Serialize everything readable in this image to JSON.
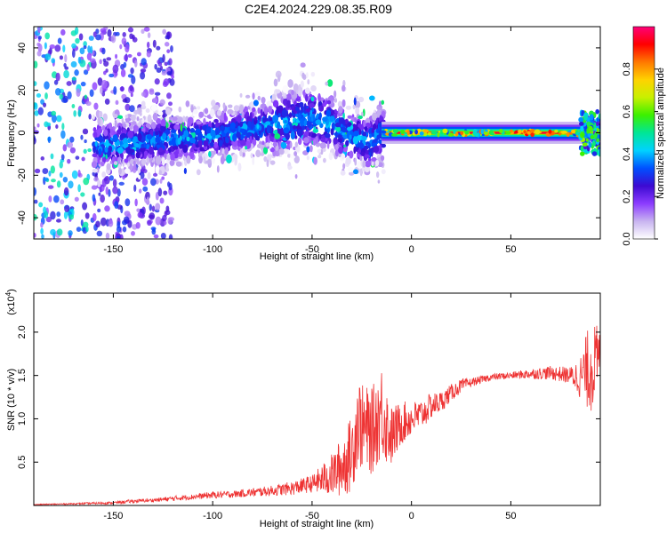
{
  "title": "C2E4.2024.229.08.35.R09",
  "chart_data": [
    {
      "type": "heatmap",
      "xlabel": "Height of straight line (km)",
      "ylabel": "Frequency (Hz)",
      "xlim": [
        -190,
        95
      ],
      "ylim": [
        -50,
        50
      ],
      "xticks": [
        -150,
        -100,
        -50,
        0,
        50
      ],
      "yticks": [
        -40,
        -20,
        0,
        20,
        40
      ],
      "colorbar": {
        "label": "Normalized spectral amplitude",
        "range": [
          0,
          1
        ],
        "ticks": [
          "0.0",
          "0.2",
          "0.4",
          "0.6",
          "0.8"
        ],
        "colors": [
          "#ffffff",
          "#c8b4f0",
          "#8c3cff",
          "#3c0ad2",
          "#0050ff",
          "#00d2ff",
          "#00e696",
          "#3cf000",
          "#c8f000",
          "#ffd200",
          "#ff7800",
          "#ff0000",
          "#ff0078"
        ]
      },
      "ridge": [
        {
          "x": -155,
          "f": -6
        },
        {
          "x": -140,
          "f": -5
        },
        {
          "x": -120,
          "f": -3
        },
        {
          "x": -100,
          "f": -1
        },
        {
          "x": -80,
          "f": 2
        },
        {
          "x": -65,
          "f": 5
        },
        {
          "x": -50,
          "f": 7
        },
        {
          "x": -40,
          "f": 4
        },
        {
          "x": -30,
          "f": -2
        },
        {
          "x": -20,
          "f": -4
        },
        {
          "x": -15,
          "f": 0
        },
        {
          "x": 0,
          "f": 0
        },
        {
          "x": 50,
          "f": 0
        },
        {
          "x": 90,
          "f": 1
        },
        {
          "x": 95,
          "f": 0
        }
      ]
    },
    {
      "type": "line",
      "xlabel": "Height of straight line (km)",
      "ylabel": "SNR (10 * v/v)",
      "multiplier_prefix": "(x10",
      "multiplier_exp": "4",
      "multiplier_suffix": ")",
      "xlim": [
        -190,
        95
      ],
      "ylim": [
        0,
        2.45
      ],
      "xticks": [
        -150,
        -100,
        -50,
        0,
        50
      ],
      "yticks": [
        "0.5",
        "1.0",
        "1.5",
        "2.0"
      ],
      "series": [
        {
          "color": "#ee3333",
          "x": [
            -190,
            -170,
            -150,
            -140,
            -130,
            -120,
            -110,
            -100,
            -90,
            -80,
            -70,
            -60,
            -50,
            -40,
            -35,
            -30,
            -27,
            -25,
            -20,
            -15,
            -12,
            -10,
            -5,
            0,
            5,
            10,
            15,
            20,
            25,
            30,
            40,
            50,
            60,
            70,
            80,
            85,
            90,
            95
          ],
          "values": [
            0.01,
            0.02,
            0.03,
            0.05,
            0.06,
            0.08,
            0.1,
            0.12,
            0.13,
            0.15,
            0.17,
            0.2,
            0.25,
            0.35,
            0.45,
            0.6,
            1.0,
            0.9,
            0.85,
            1.1,
            0.9,
            0.8,
            0.95,
            1.0,
            1.05,
            1.15,
            1.2,
            1.3,
            1.38,
            1.42,
            1.48,
            1.5,
            1.52,
            1.53,
            1.5,
            1.48,
            1.6,
            1.7
          ],
          "noise": [
            0.005,
            0.008,
            0.015,
            0.02,
            0.02,
            0.03,
            0.03,
            0.04,
            0.04,
            0.05,
            0.06,
            0.08,
            0.1,
            0.25,
            0.35,
            0.45,
            0.55,
            0.5,
            0.5,
            0.55,
            0.45,
            0.35,
            0.25,
            0.2,
            0.18,
            0.15,
            0.12,
            0.1,
            0.08,
            0.05,
            0.04,
            0.04,
            0.06,
            0.08,
            0.1,
            0.25,
            0.55,
            0.35
          ]
        }
      ]
    }
  ]
}
